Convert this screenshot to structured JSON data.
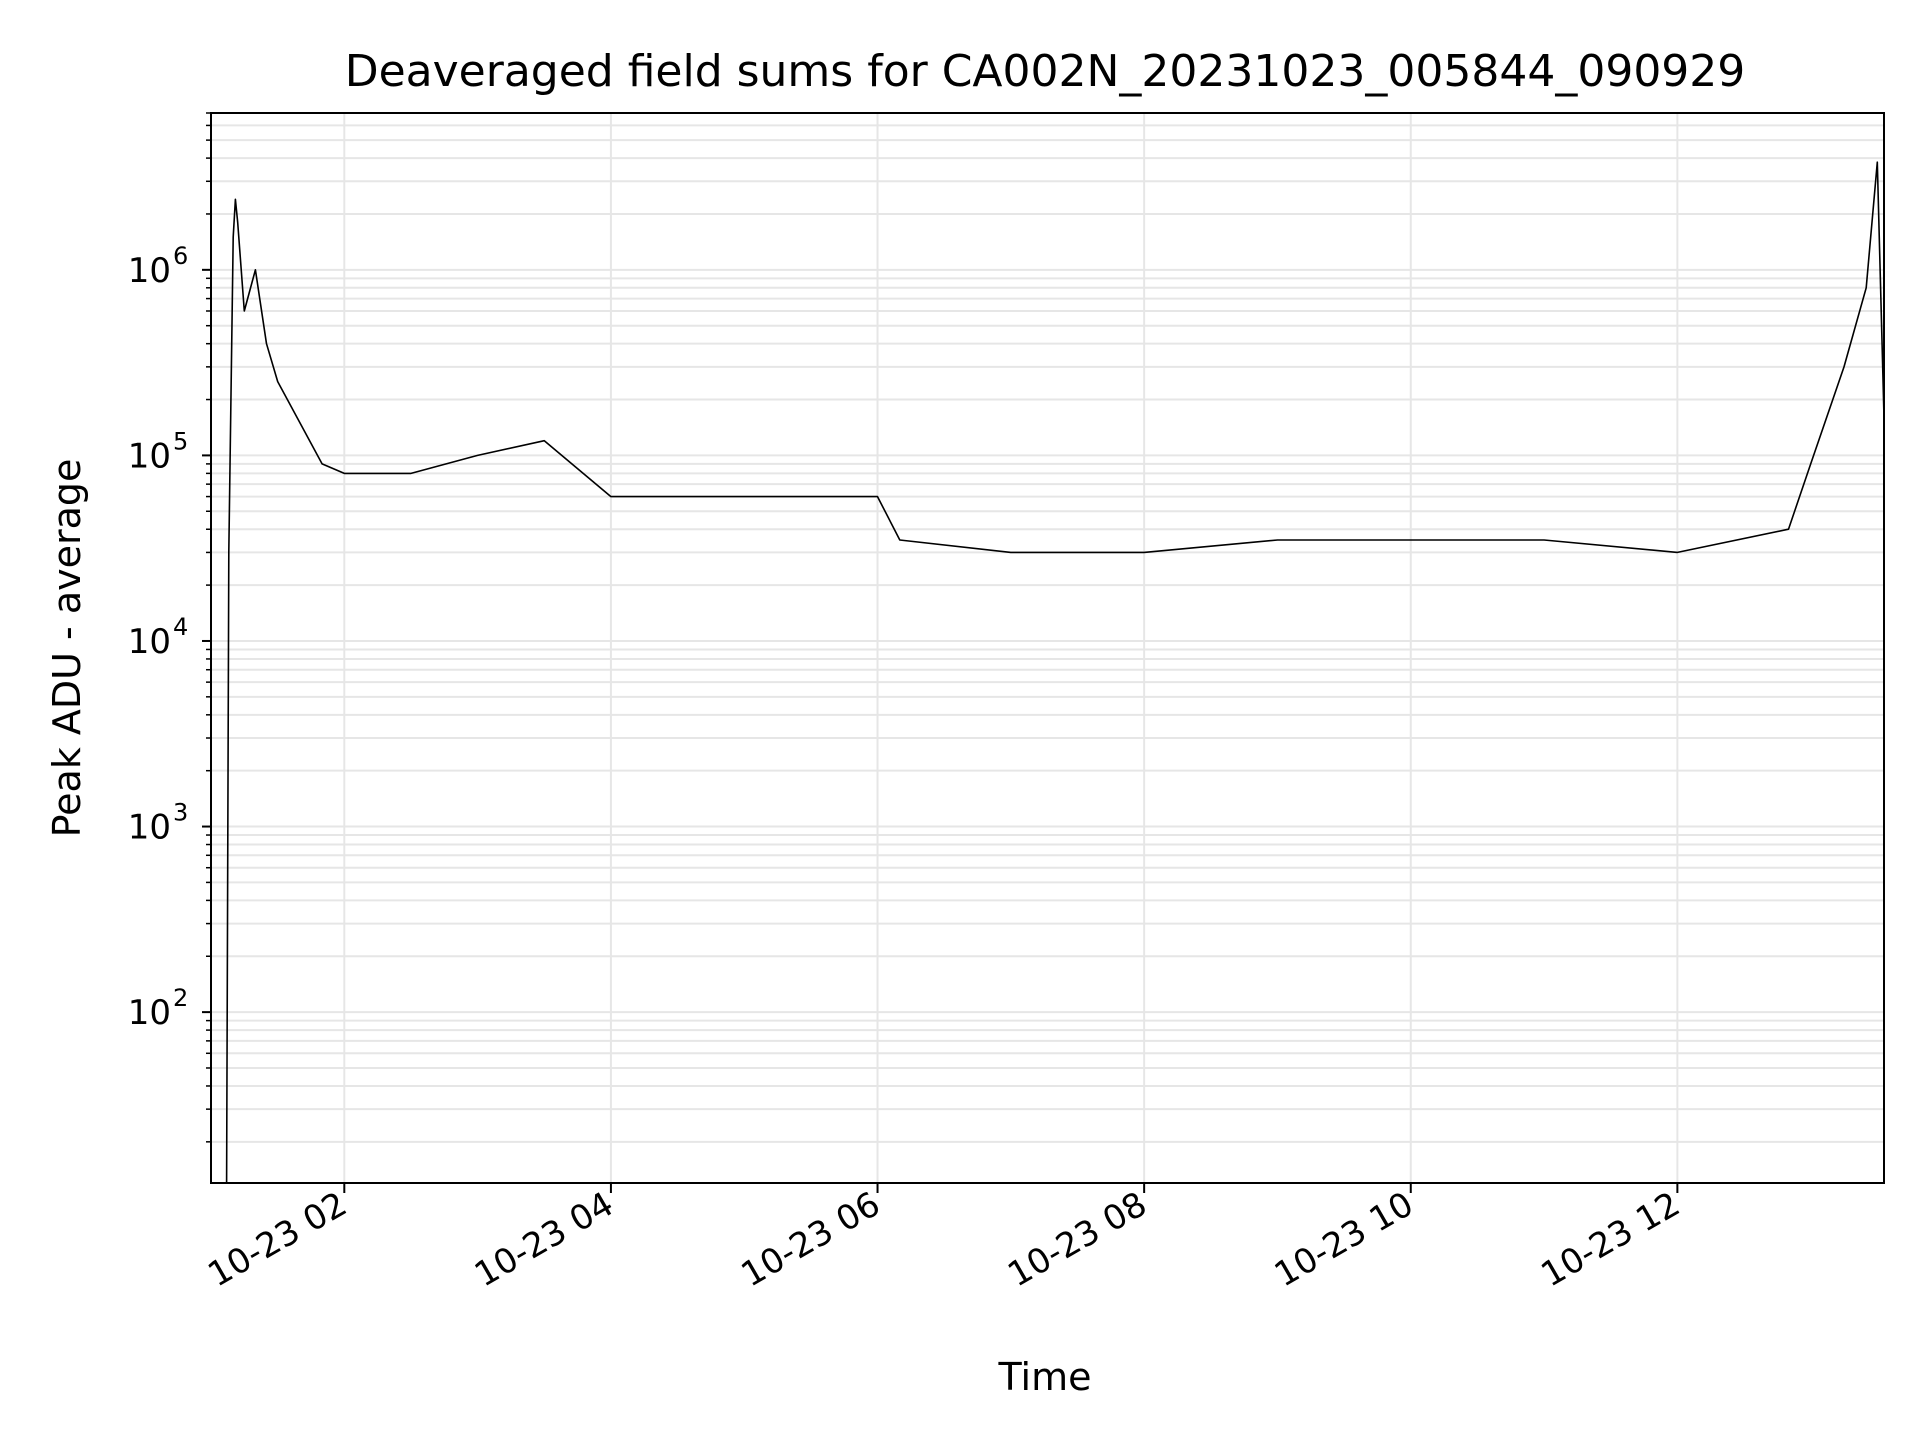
{
  "chart_data": {
    "type": "line",
    "title": "Deaveraged field sums for CA002N_20231023_005844_090929",
    "xlabel": "Time",
    "ylabel": "Peak ADU - average",
    "yscale": "log",
    "grid": true,
    "xlim": [
      "2023-10-23 01:00",
      "2023-10-23 13:33"
    ],
    "ylim": [
      12,
      7000000
    ],
    "x_ticks": [
      {
        "value": "2023-10-23 02:00",
        "label": "10-23 02"
      },
      {
        "value": "2023-10-23 04:00",
        "label": "10-23 04"
      },
      {
        "value": "2023-10-23 06:00",
        "label": "10-23 06"
      },
      {
        "value": "2023-10-23 08:00",
        "label": "10-23 08"
      },
      {
        "value": "2023-10-23 10:00",
        "label": "10-23 10"
      },
      {
        "value": "2023-10-23 12:00",
        "label": "10-23 12"
      }
    ],
    "y_ticks": [
      {
        "value": 100,
        "base": "10",
        "exp": "2"
      },
      {
        "value": 1000,
        "base": "10",
        "exp": "3"
      },
      {
        "value": 10000,
        "base": "10",
        "exp": "4"
      },
      {
        "value": 100000,
        "base": "10",
        "exp": "5"
      },
      {
        "value": 1000000,
        "base": "10",
        "exp": "6"
      }
    ],
    "series": [
      {
        "color": "#000000",
        "points": [
          {
            "x": "2023-10-23 01:07",
            "y": 12
          },
          {
            "x": "2023-10-23 01:08",
            "y": 30000
          },
          {
            "x": "2023-10-23 01:10",
            "y": 1500000
          },
          {
            "x": "2023-10-23 01:11",
            "y": 2400000
          },
          {
            "x": "2023-10-23 01:12",
            "y": 1800000
          },
          {
            "x": "2023-10-23 01:15",
            "y": 600000
          },
          {
            "x": "2023-10-23 01:20",
            "y": 1000000
          },
          {
            "x": "2023-10-23 01:25",
            "y": 400000
          },
          {
            "x": "2023-10-23 01:30",
            "y": 250000
          },
          {
            "x": "2023-10-23 01:40",
            "y": 150000
          },
          {
            "x": "2023-10-23 01:50",
            "y": 90000
          },
          {
            "x": "2023-10-23 02:00",
            "y": 80000
          },
          {
            "x": "2023-10-23 02:30",
            "y": 80000
          },
          {
            "x": "2023-10-23 03:00",
            "y": 100000
          },
          {
            "x": "2023-10-23 03:30",
            "y": 120000
          },
          {
            "x": "2023-10-23 04:00",
            "y": 60000
          },
          {
            "x": "2023-10-23 05:00",
            "y": 60000
          },
          {
            "x": "2023-10-23 06:00",
            "y": 60000
          },
          {
            "x": "2023-10-23 06:10",
            "y": 35000
          },
          {
            "x": "2023-10-23 07:00",
            "y": 30000
          },
          {
            "x": "2023-10-23 08:00",
            "y": 30000
          },
          {
            "x": "2023-10-23 09:00",
            "y": 35000
          },
          {
            "x": "2023-10-23 10:00",
            "y": 35000
          },
          {
            "x": "2023-10-23 11:00",
            "y": 35000
          },
          {
            "x": "2023-10-23 12:00",
            "y": 30000
          },
          {
            "x": "2023-10-23 12:50",
            "y": 40000
          },
          {
            "x": "2023-10-23 13:00",
            "y": 90000
          },
          {
            "x": "2023-10-23 13:15",
            "y": 300000
          },
          {
            "x": "2023-10-23 13:25",
            "y": 800000
          },
          {
            "x": "2023-10-23 13:30",
            "y": 3800000
          },
          {
            "x": "2023-10-23 13:33",
            "y": 160000
          }
        ]
      }
    ]
  }
}
